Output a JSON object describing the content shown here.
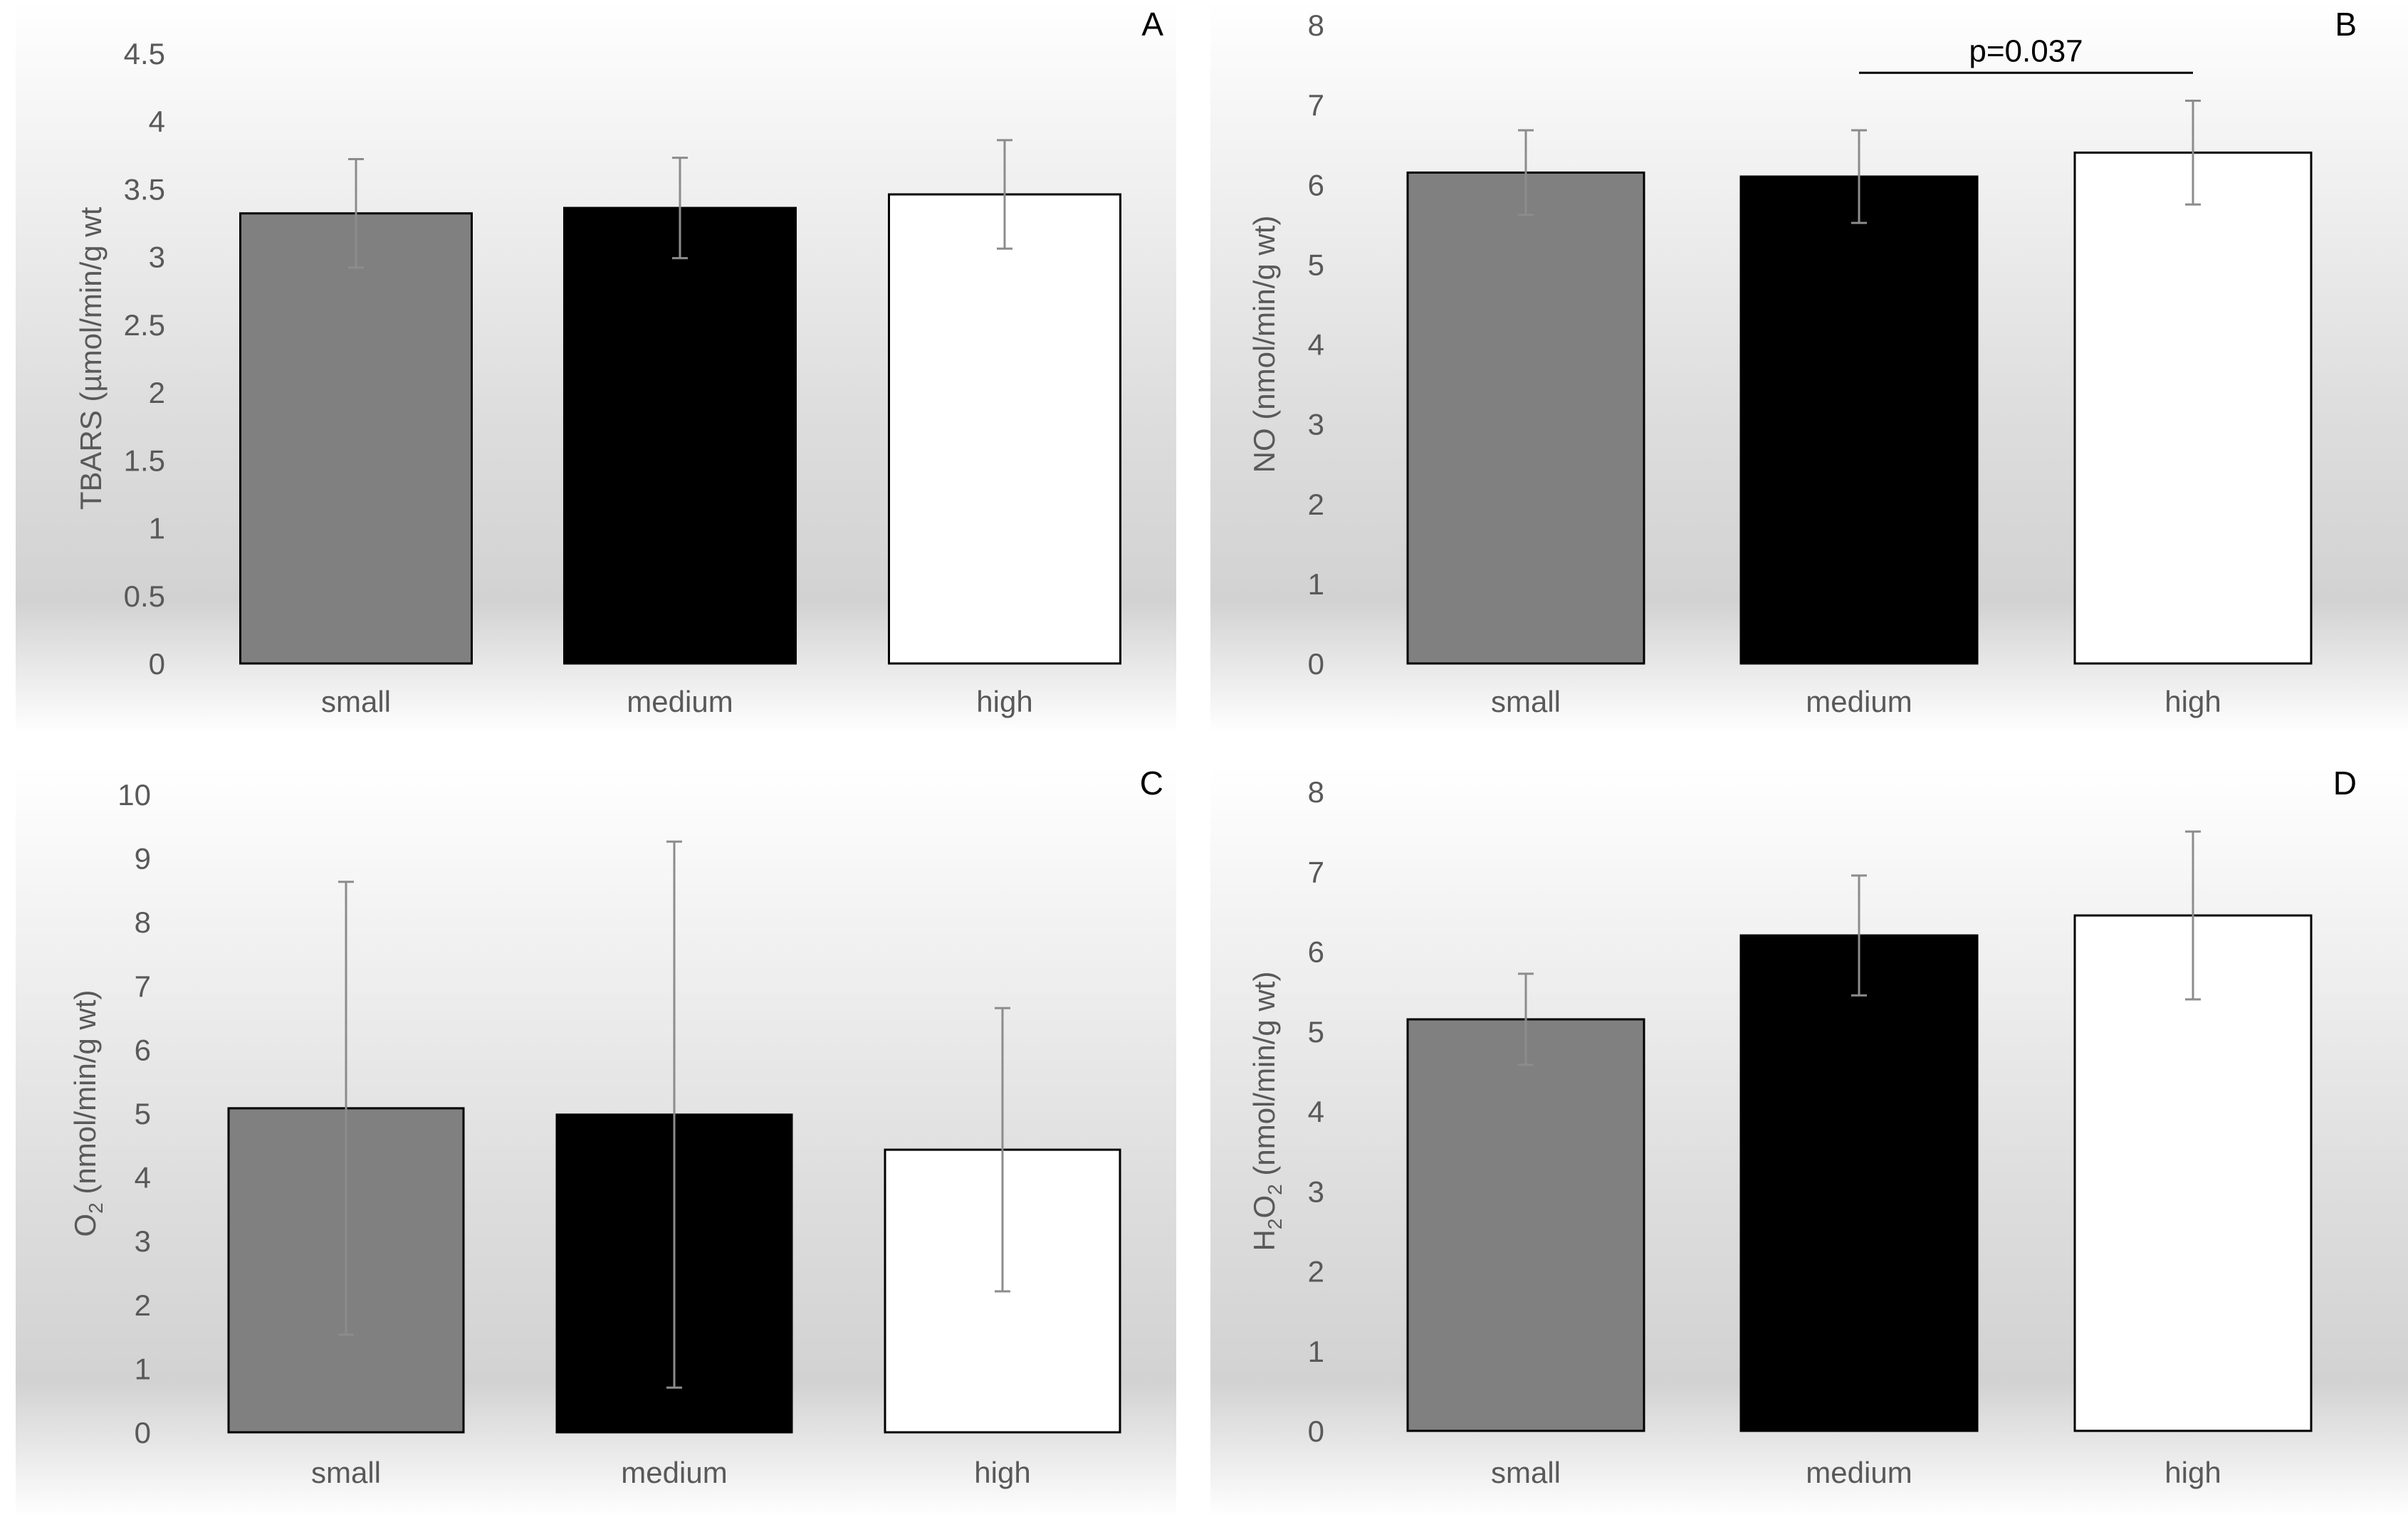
{
  "chart_data": [
    {
      "panel": "A",
      "type": "bar",
      "categories": [
        "small",
        "medium",
        "high"
      ],
      "values": [
        3.32,
        3.36,
        3.46
      ],
      "error": [
        0.4,
        0.37,
        0.4
      ],
      "ylabel": "TBARS (µmol/min/g wt",
      "ylim": [
        0,
        4.5
      ],
      "yticks": [
        "0",
        "0.5",
        "1",
        "1.5",
        "2",
        "2.5",
        "3",
        "3.5",
        "4",
        "4.5"
      ],
      "bar_colors": [
        "#808080",
        "#000000",
        "#ffffff"
      ],
      "annotation": null
    },
    {
      "panel": "B",
      "type": "bar",
      "categories": [
        "small",
        "medium",
        "high"
      ],
      "values": [
        6.15,
        6.1,
        6.4
      ],
      "error": [
        0.53,
        0.58,
        0.65
      ],
      "ylabel": "NO (nmol/min/g wt)",
      "ylim": [
        0,
        8
      ],
      "yticks": [
        "0",
        "1",
        "2",
        "3",
        "4",
        "5",
        "6",
        "7",
        "8"
      ],
      "bar_colors": [
        "#808080",
        "#000000",
        "#ffffff"
      ],
      "annotation": {
        "text": "p=0.037",
        "from": 1,
        "to": 2,
        "y": 7.4
      }
    },
    {
      "panel": "C",
      "type": "bar",
      "categories": [
        "small",
        "medium",
        "high"
      ],
      "values": [
        5.08,
        4.98,
        4.43
      ],
      "error": [
        3.55,
        4.28,
        2.22
      ],
      "ylabel_main": "O",
      "ylabel_sub": "2",
      "ylabel_rest": " (nmol/min/g wt)",
      "ylim": [
        0,
        10
      ],
      "yticks": [
        "0",
        "1",
        "2",
        "3",
        "4",
        "5",
        "6",
        "7",
        "8",
        "9",
        "10"
      ],
      "bar_colors": [
        "#808080",
        "#000000",
        "#ffffff"
      ],
      "annotation": null
    },
    {
      "panel": "D",
      "type": "bar",
      "categories": [
        "small",
        "medium",
        "high"
      ],
      "values": [
        5.15,
        6.2,
        6.45
      ],
      "error": [
        0.57,
        0.75,
        1.05
      ],
      "ylabel_main": "H",
      "ylabel_sub": "2",
      "ylabel_mid": "O",
      "ylabel_sub2": "2",
      "ylabel_rest": " (nmol/min/g wt)",
      "ylim": [
        0,
        8
      ],
      "yticks": [
        "0",
        "1",
        "2",
        "3",
        "4",
        "5",
        "6",
        "7",
        "8"
      ],
      "bar_colors": [
        "#808080",
        "#000000",
        "#ffffff"
      ],
      "annotation": null
    }
  ]
}
